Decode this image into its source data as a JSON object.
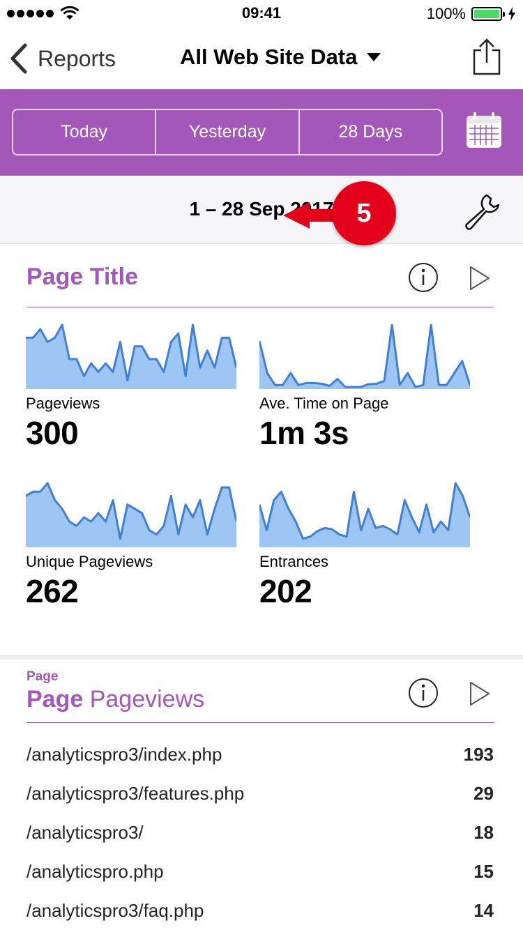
{
  "status_bar": {
    "time": "09:41",
    "battery": "100%"
  },
  "nav": {
    "back_label": "Reports",
    "title": "All Web Site Data"
  },
  "range_tabs": [
    "Today",
    "Yesterday",
    "28 Days"
  ],
  "date_range": {
    "label": "1 – 28 Sep 2017"
  },
  "callout": {
    "number": "5"
  },
  "page_title_card": {
    "title": "Page Title",
    "metrics": [
      {
        "label": "Pageviews",
        "value": "300",
        "sparkline": [
          12,
          12,
          14,
          11,
          12,
          15,
          7,
          7,
          3,
          6,
          4,
          6,
          4,
          11,
          2,
          10,
          10,
          7,
          7,
          4,
          11,
          13,
          3,
          15,
          5,
          9,
          5,
          12,
          12,
          5
        ]
      },
      {
        "label": "Ave. Time on Page",
        "value": "1m 3s",
        "sparkline": [
          12,
          4,
          1,
          1,
          4,
          1,
          1.5,
          1.5,
          1.3,
          0.8,
          2.5,
          0.5,
          0.5,
          0.5,
          1.2,
          1.3,
          2,
          16,
          1,
          4,
          0.5,
          1,
          16,
          1,
          1,
          4,
          7,
          1
        ]
      },
      {
        "label": "Unique Pageviews",
        "value": "262",
        "sparkline": [
          12,
          13,
          13,
          15,
          11,
          9,
          6,
          5,
          7,
          6,
          8,
          6,
          11,
          2,
          10,
          9,
          8,
          4,
          3,
          5,
          12,
          3,
          10,
          7,
          11,
          3,
          9,
          14,
          14,
          6
        ]
      },
      {
        "label": "Entrances",
        "value": "202",
        "sparkline": [
          10,
          4,
          11,
          13,
          9,
          6,
          2,
          2.5,
          3.8,
          4.5,
          4.2,
          3,
          2.5,
          13,
          4,
          9,
          4.5,
          5,
          4.2,
          3,
          11,
          7,
          3.5,
          10,
          3.5,
          6,
          4,
          15,
          12,
          7
        ]
      }
    ]
  },
  "page_card": {
    "eyebrow": "Page",
    "title_bold": "Page",
    "title_light": "Pageviews",
    "rows": [
      {
        "path": "/analyticspro3/index.php",
        "count": "193"
      },
      {
        "path": "/analyticspro3/features.php",
        "count": "29"
      },
      {
        "path": "/analyticspro3/",
        "count": "18"
      },
      {
        "path": "/analyticspro.php",
        "count": "15"
      },
      {
        "path": "/analyticspro3/faq.php",
        "count": "14"
      }
    ]
  },
  "colors": {
    "accent": "#a357b9",
    "sparkline_fill": "#9ec6f4",
    "sparkline_stroke": "#3f7fd4",
    "callout": "#e4001b"
  }
}
